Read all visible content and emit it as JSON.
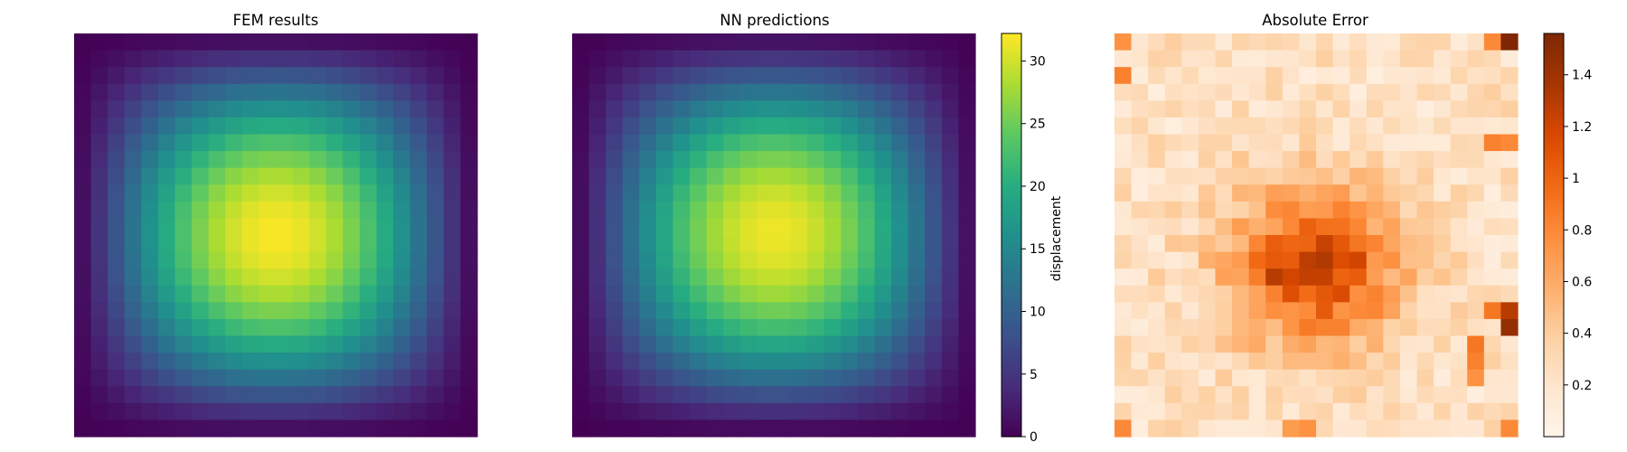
{
  "chart_data": [
    {
      "type": "heatmap",
      "title": "FEM results",
      "grid": {
        "rows": 24,
        "cols": 24
      },
      "field": {
        "peak": 32.0,
        "peak_row": 11.5,
        "peak_col": 12.0,
        "sigma": 10.5,
        "edge_value": 0.0
      },
      "colormap": "viridis",
      "value_range": [
        0,
        32.2
      ],
      "axes_visible": false
    },
    {
      "type": "heatmap",
      "title": "NN predictions",
      "grid": {
        "rows": 24,
        "cols": 24
      },
      "field": {
        "peak": 31.5,
        "peak_row": 11.6,
        "peak_col": 11.9,
        "sigma": 10.5,
        "edge_value": 0.0
      },
      "colormap": "viridis",
      "value_range": [
        0,
        32.2
      ],
      "colorbar": {
        "label": "displacement",
        "ticks": [
          0,
          5,
          10,
          15,
          20,
          25,
          30
        ]
      },
      "axes_visible": false
    },
    {
      "type": "heatmap",
      "title": "Absolute Error",
      "grid": {
        "rows": 24,
        "cols": 24
      },
      "colormap": "Oranges",
      "value_range": [
        0.0,
        1.56
      ],
      "colorbar": {
        "label": "",
        "ticks": [
          0.2,
          0.4,
          0.6,
          0.8,
          1.0,
          1.2,
          1.4
        ]
      },
      "axes_visible": false
    }
  ]
}
